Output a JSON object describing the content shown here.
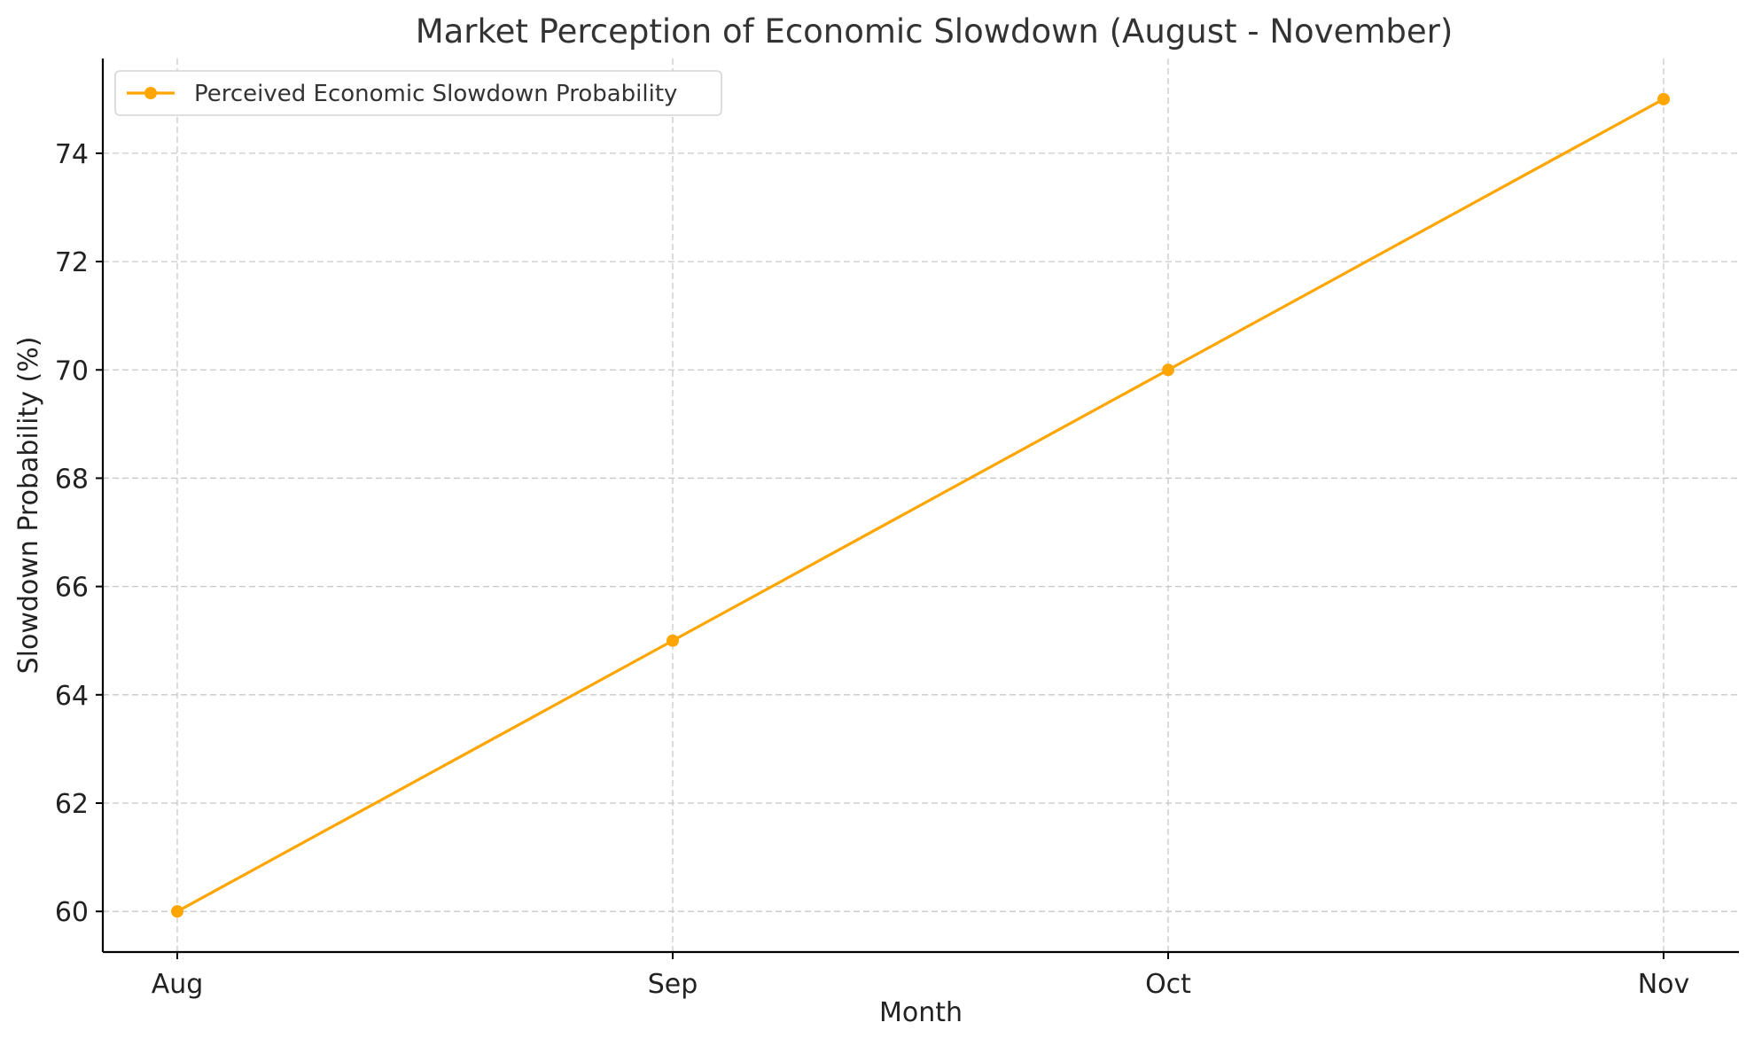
{
  "chart_data": {
    "type": "line",
    "title": "Market Perception of Economic Slowdown (August - November)",
    "xlabel": "Month",
    "ylabel": "Slowdown Probability (%)",
    "categories": [
      "Aug",
      "Sep",
      "Oct",
      "Nov"
    ],
    "yticks": [
      60,
      62,
      64,
      66,
      68,
      70,
      72,
      74
    ],
    "ylim": [
      59.25,
      75.75
    ],
    "grid": true,
    "legend_position": "upper-left",
    "series": [
      {
        "name": "Perceived Economic Slowdown Probability",
        "values": [
          60,
          65,
          70,
          75
        ],
        "color": "#FFA500",
        "marker": "circle"
      }
    ]
  }
}
